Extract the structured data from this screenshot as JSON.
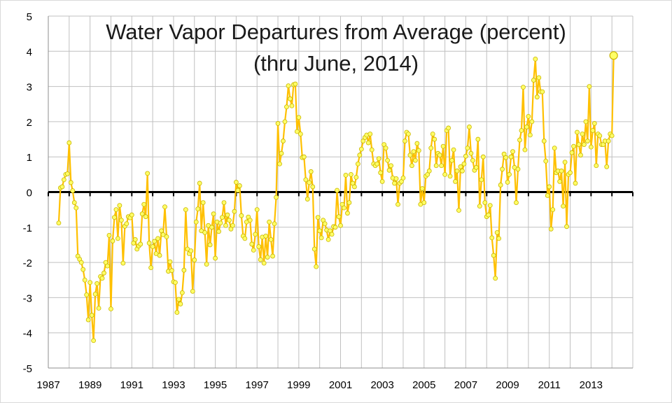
{
  "chart_data": {
    "type": "line",
    "title": "Water Vapor Departures from Average (percent)",
    "subtitle": "(thru June, 2014)",
    "xlabel": "",
    "ylabel": "",
    "xlim": [
      1987,
      2015
    ],
    "ylim": [
      -5,
      5
    ],
    "x_ticks": [
      "1987",
      "1989",
      "1991",
      "1993",
      "1995",
      "1997",
      "1999",
      "2001",
      "2003",
      "2005",
      "2007",
      "2009",
      "2011",
      "2013"
    ],
    "y_ticks": [
      "5",
      "4",
      "3",
      "2",
      "1",
      "0",
      "-1",
      "-2",
      "-3",
      "-4",
      "-5"
    ],
    "grid": true,
    "legend": "none",
    "line_color": "#ffc000",
    "marker_color": "#ffff66",
    "zero_line_color": "#000000",
    "series": [
      {
        "start": "1987-07",
        "frequency": "monthly",
        "values": [
          -0.88,
          0.12,
          0.15,
          0.35,
          0.5,
          0.52,
          1.4,
          0.27,
          0.04,
          -0.3,
          -0.45,
          -1.82,
          -1.91,
          -2.0,
          -2.2,
          -2.5,
          -2.92,
          -3.63,
          -2.57,
          -3.5,
          -4.22,
          -2.9,
          -2.6,
          -3.3,
          -2.4,
          -2.45,
          -2.3,
          -2.0,
          -2.1,
          -1.23,
          -3.32,
          -1.39,
          -0.72,
          -0.5,
          -1.32,
          -0.38,
          -0.8,
          -2.02,
          -0.97,
          -0.9,
          -0.7,
          -0.73,
          -0.65,
          -1.45,
          -1.35,
          -1.62,
          -1.53,
          -1.48,
          -0.62,
          -0.35,
          -0.7,
          0.53,
          -1.45,
          -2.15,
          -1.55,
          -1.4,
          -1.75,
          -1.32,
          -1.8,
          -1.1,
          -1.21,
          -0.42,
          -1.27,
          -2.25,
          -1.98,
          -2.23,
          -2.55,
          -2.57,
          -3.42,
          -3.05,
          -3.18,
          -2.86,
          -2.22,
          -0.5,
          -1.62,
          -1.75,
          -1.67,
          -2.82,
          -1.93,
          -0.85,
          -0.48,
          0.25,
          -1.1,
          -0.3,
          -1.15,
          -2.05,
          -0.95,
          -1.5,
          -1.0,
          -0.62,
          -1.88,
          -0.85,
          -1.12,
          -0.88,
          -0.72,
          -0.3,
          -0.95,
          -0.65,
          -0.8,
          -1.05,
          -0.95,
          -0.55,
          0.28,
          0.05,
          0.18,
          -0.67,
          -1.25,
          -1.32,
          -0.85,
          -0.71,
          -0.8,
          -1.48,
          -1.65,
          -1.2,
          -0.5,
          -1.55,
          -1.92,
          -1.28,
          -2.02,
          -1.25,
          -1.85,
          -0.85,
          -1.35,
          -1.82,
          -0.9,
          -0.15,
          1.95,
          0.8,
          1.1,
          1.45,
          2.0,
          2.42,
          3.02,
          2.65,
          2.45,
          3.05,
          3.07,
          1.72,
          2.12,
          1.65,
          0.98,
          1.0,
          0.35,
          -0.2,
          0.27,
          0.58,
          0.15,
          -1.62,
          -2.12,
          -0.72,
          -1.1,
          -1.3,
          -0.8,
          -0.9,
          -1.08,
          -1.35,
          -1.1,
          -1.2,
          -0.98,
          -1.0,
          0.05,
          -0.7,
          -0.95,
          -0.35,
          -0.45,
          0.48,
          -0.6,
          -0.3,
          0.5,
          0.25,
          0.15,
          0.42,
          0.8,
          1.05,
          1.22,
          1.45,
          1.55,
          1.62,
          1.4,
          1.65,
          1.2,
          0.8,
          0.75,
          0.8,
          0.95,
          0.55,
          0.3,
          1.35,
          1.25,
          0.9,
          0.62,
          0.75,
          0.4,
          0.25,
          0.38,
          -0.35,
          0.25,
          0.3,
          0.4,
          1.45,
          1.7,
          1.65,
          1.05,
          0.75,
          1.15,
          0.9,
          1.38,
          1.18,
          -0.35,
          0.1,
          -0.3,
          0.45,
          0.5,
          0.6,
          1.25,
          1.65,
          1.5,
          0.75,
          1.1,
          1.05,
          0.75,
          1.3,
          0.5,
          1.75,
          1.82,
          0.45,
          0.9,
          1.2,
          0.3,
          0.6,
          -0.52,
          0.72,
          0.6,
          0.8,
          1.02,
          1.25,
          1.85,
          1.1,
          0.9,
          0.62,
          0.7,
          1.5,
          -0.4,
          0.35,
          1.0,
          -0.3,
          -0.7,
          -0.65,
          -0.38,
          -1.3,
          -1.8,
          -2.45,
          -1.15,
          -1.32,
          0.2,
          0.65,
          1.08,
          0.98,
          0.28,
          0.5,
          1.0,
          1.15,
          0.7,
          -0.3,
          0.65,
          1.48,
          1.75,
          2.98,
          1.2,
          1.85,
          2.15,
          1.62,
          2.0,
          3.18,
          3.78,
          2.7,
          3.25,
          2.85,
          2.85,
          1.45,
          0.88,
          -0.1,
          0.15,
          -1.05,
          -0.5,
          1.25,
          0.55,
          0.6,
          0.3,
          0.6,
          -0.4,
          0.85,
          -0.98,
          0.5,
          0.55,
          1.12,
          1.3,
          0.25,
          1.7,
          1.35,
          1.05,
          1.65,
          1.35,
          2.0,
          1.45,
          3.0,
          1.28,
          1.75,
          1.95,
          0.75,
          1.65,
          1.6,
          1.35,
          1.35,
          1.45,
          0.72,
          1.45,
          1.65,
          1.6,
          3.88
        ]
      }
    ]
  }
}
